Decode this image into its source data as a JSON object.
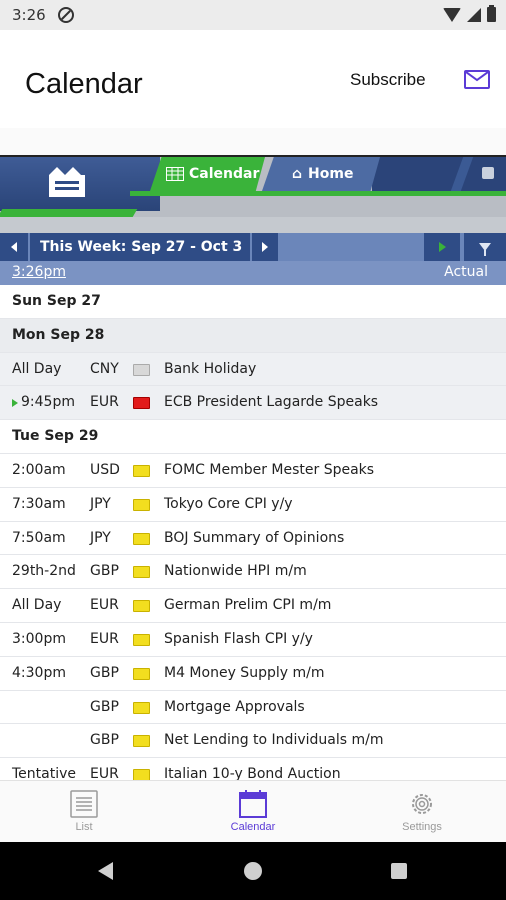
{
  "status_bar": {
    "time": "3:26"
  },
  "app_header": {
    "title": "Calendar",
    "subscribe_label": "Subscribe"
  },
  "web_tabs": {
    "calendar": "Calendar",
    "home": "Home"
  },
  "week_nav": {
    "label": "This Week: Sep 27 - Oct 3",
    "current_time": "3:26pm",
    "actual_label": "Actual"
  },
  "colors": {
    "accent": "#5b3bd6",
    "header_blue": "#2f4c86",
    "green": "#3ab33a"
  },
  "rows": [
    {
      "type": "day",
      "label": "Sun Sep 27"
    },
    {
      "type": "day",
      "label": "Mon Sep 28"
    },
    {
      "type": "event",
      "time": "All Day",
      "currency": "CNY",
      "impact": "none",
      "name": "Bank Holiday"
    },
    {
      "type": "event",
      "time": "9:45pm",
      "currency": "EUR",
      "impact": "high",
      "name": "ECB President Lagarde Speaks",
      "next": true
    },
    {
      "type": "day",
      "label": "Tue Sep 29"
    },
    {
      "type": "event",
      "time": "2:00am",
      "currency": "USD",
      "impact": "low",
      "name": "FOMC Member Mester Speaks"
    },
    {
      "type": "event",
      "time": "7:30am",
      "currency": "JPY",
      "impact": "low",
      "name": "Tokyo Core CPI y/y"
    },
    {
      "type": "event",
      "time": "7:50am",
      "currency": "JPY",
      "impact": "low",
      "name": "BOJ Summary of Opinions"
    },
    {
      "type": "event",
      "time": "29th-2nd",
      "currency": "GBP",
      "impact": "low",
      "name": "Nationwide HPI m/m"
    },
    {
      "type": "event",
      "time": "All Day",
      "currency": "EUR",
      "impact": "low",
      "name": "German Prelim CPI m/m"
    },
    {
      "type": "event",
      "time": "3:00pm",
      "currency": "EUR",
      "impact": "low",
      "name": "Spanish Flash CPI y/y"
    },
    {
      "type": "event",
      "time": "4:30pm",
      "currency": "GBP",
      "impact": "low",
      "name": "M4 Money Supply m/m"
    },
    {
      "type": "event",
      "time": "",
      "currency": "GBP",
      "impact": "low",
      "name": "Mortgage Approvals"
    },
    {
      "type": "event",
      "time": "",
      "currency": "GBP",
      "impact": "low",
      "name": "Net Lending to Individuals m/m"
    },
    {
      "type": "event",
      "time": "Tentative",
      "currency": "EUR",
      "impact": "low",
      "name": "Italian 10-y Bond Auction"
    }
  ],
  "bottom_nav": {
    "list": "List",
    "calendar": "Calendar",
    "settings": "Settings"
  }
}
